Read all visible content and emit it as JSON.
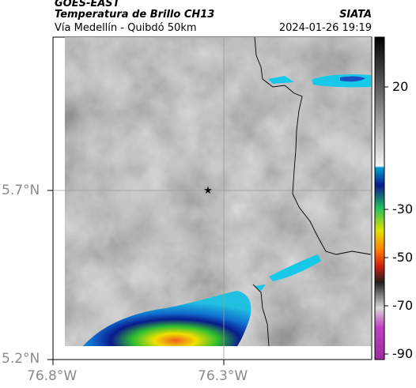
{
  "header": {
    "product": "GOES-EAST",
    "title": "Temperatura de Brillo CH13",
    "subtitle": "Vía Medellín - Quibdó 50km",
    "source": "SIATA",
    "datetime": "2024-01-26 19:19"
  },
  "map": {
    "lat_ticks": [
      "5.7°N",
      "5.2°N"
    ],
    "lon_ticks": [
      "76.8°W",
      "76.3°W"
    ],
    "marker": "star-marker"
  },
  "colorbar": {
    "tick_labels": [
      "20",
      "-30",
      "-50",
      "-70",
      "-90"
    ]
  },
  "colors": {
    "cold_cyan": "#18c8e8",
    "deep_blue": "#0a1a8c",
    "green": "#2fc830",
    "yellow": "#f0f000",
    "orange": "#ff7a00",
    "red": "#d82010",
    "magenta": "#b030b0"
  }
}
